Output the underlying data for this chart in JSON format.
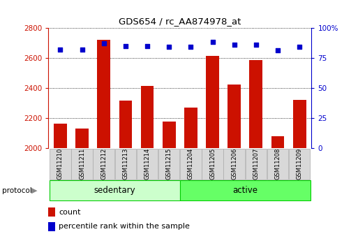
{
  "title": "GDS654 / rc_AA874978_at",
  "samples": [
    "GSM11210",
    "GSM11211",
    "GSM11212",
    "GSM11213",
    "GSM11214",
    "GSM11215",
    "GSM11204",
    "GSM11205",
    "GSM11206",
    "GSM11207",
    "GSM11208",
    "GSM11209"
  ],
  "counts": [
    2163,
    2130,
    2720,
    2315,
    2415,
    2175,
    2270,
    2615,
    2425,
    2585,
    2080,
    2320
  ],
  "percentile_ranks": [
    82,
    82,
    87,
    85,
    85,
    84,
    84,
    88,
    86,
    86,
    81,
    84
  ],
  "groups": [
    {
      "label": "sedentary",
      "start": 0,
      "end": 5,
      "color": "#ccffcc"
    },
    {
      "label": "active",
      "start": 6,
      "end": 11,
      "color": "#66ff66"
    }
  ],
  "ylim_left": [
    2000,
    2800
  ],
  "ylim_right": [
    0,
    100
  ],
  "yticks_left": [
    2000,
    2200,
    2400,
    2600,
    2800
  ],
  "yticks_right": [
    0,
    25,
    50,
    75,
    100
  ],
  "bar_color": "#CC1100",
  "dot_color": "#0000CC",
  "background_color": "#ffffff",
  "grid_color": "#000000",
  "left_tick_color": "#CC1100",
  "right_tick_color": "#0000CC",
  "bar_bottom": 2000,
  "protocol_label": "protocol",
  "legend_count_label": "count",
  "legend_pct_label": "percentile rank within the sample",
  "sedentary_color": "#ccffcc",
  "active_color": "#66ff66",
  "group_border_color": "#00cc00"
}
